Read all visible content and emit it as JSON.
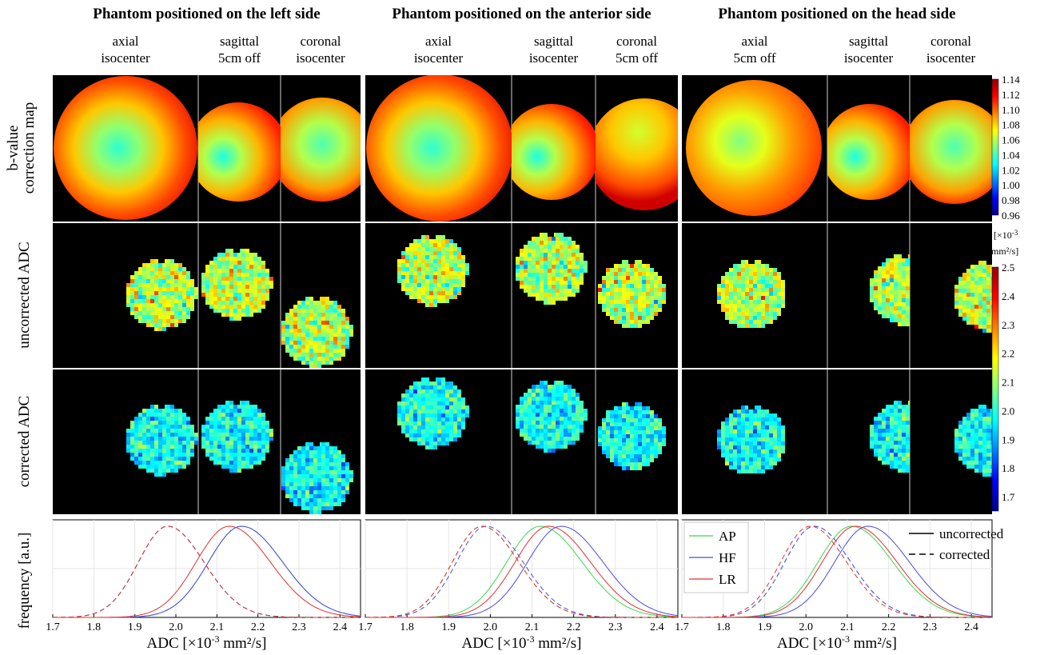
{
  "groups": [
    {
      "title": "Phantom positioned on the left side",
      "views": [
        {
          "plane": "axial",
          "pos": "isocenter"
        },
        {
          "plane": "sagittal",
          "pos": "5cm off"
        },
        {
          "plane": "coronal",
          "pos": "isocenter"
        }
      ]
    },
    {
      "title": "Phantom positioned on the anterior side",
      "views": [
        {
          "plane": "axial",
          "pos": "isocenter"
        },
        {
          "plane": "sagittal",
          "pos": "isocenter"
        },
        {
          "plane": "coronal",
          "pos": "5cm off"
        }
      ]
    },
    {
      "title": "Phantom positioned on the head side",
      "views": [
        {
          "plane": "axial",
          "pos": "5cm off"
        },
        {
          "plane": "sagittal",
          "pos": "isocenter"
        },
        {
          "plane": "coronal",
          "pos": "isocenter"
        }
      ]
    }
  ],
  "row_labels": {
    "bvalue": [
      "b-value",
      "correction map"
    ],
    "uncorrected": "uncorrected ADC",
    "corrected": "corrected ADC",
    "frequency": "frequency [a.u.]"
  },
  "colorbars": {
    "bvalue": {
      "ticks": [
        "1.14",
        "1.12",
        "1.10",
        "1.08",
        "1.06",
        "1.04",
        "1.02",
        "1.00",
        "0.98",
        "0.96"
      ],
      "min": 0.96,
      "max": 1.14
    },
    "adc": {
      "unit_line1": "[×10",
      "unit_exp": "-3",
      "unit_line2": "mm²/s]",
      "ticks": [
        "2.5",
        "2.4",
        "2.3",
        "2.2",
        "2.1",
        "2.0",
        "1.9",
        "1.8",
        "1.7"
      ],
      "min": 1.65,
      "max": 2.5
    }
  },
  "colormap": "jet",
  "chart_data": {
    "type": "line",
    "xlabel": "ADC [×10⁻³ mm²/s]",
    "ylabel": "frequency [a.u.]",
    "xlim": [
      1.7,
      2.45
    ],
    "xticks": [
      "1.7",
      "1.8",
      "1.9",
      "2.0",
      "2.1",
      "2.2",
      "2.3",
      "2.4"
    ],
    "grid": true,
    "legend": {
      "placement": "top",
      "series_names": [
        "AP",
        "HF",
        "LR"
      ],
      "series_colors": [
        "#3fd64f",
        "#4a4adf",
        "#e03030"
      ],
      "styles": [
        {
          "name": "uncorrected",
          "dash": false
        },
        {
          "name": "corrected",
          "dash": true
        }
      ]
    },
    "panels": [
      {
        "series": [
          {
            "name": "AP",
            "uncorrected_peak": 2.16,
            "corrected_peak": 1.98
          },
          {
            "name": "HF",
            "uncorrected_peak": 2.16,
            "corrected_peak": 1.98
          },
          {
            "name": "LR",
            "uncorrected_peak": 2.13,
            "corrected_peak": 1.98
          }
        ]
      },
      {
        "series": [
          {
            "name": "AP",
            "uncorrected_peak": 2.12,
            "corrected_peak": 1.98
          },
          {
            "name": "HF",
            "uncorrected_peak": 2.17,
            "corrected_peak": 1.99
          },
          {
            "name": "LR",
            "uncorrected_peak": 2.14,
            "corrected_peak": 1.98
          }
        ]
      },
      {
        "series": [
          {
            "name": "AP",
            "uncorrected_peak": 2.11,
            "corrected_peak": 2.02
          },
          {
            "name": "HF",
            "uncorrected_peak": 2.15,
            "corrected_peak": 2.02
          },
          {
            "name": "LR",
            "uncorrected_peak": 2.12,
            "corrected_peak": 2.01
          }
        ]
      }
    ]
  }
}
